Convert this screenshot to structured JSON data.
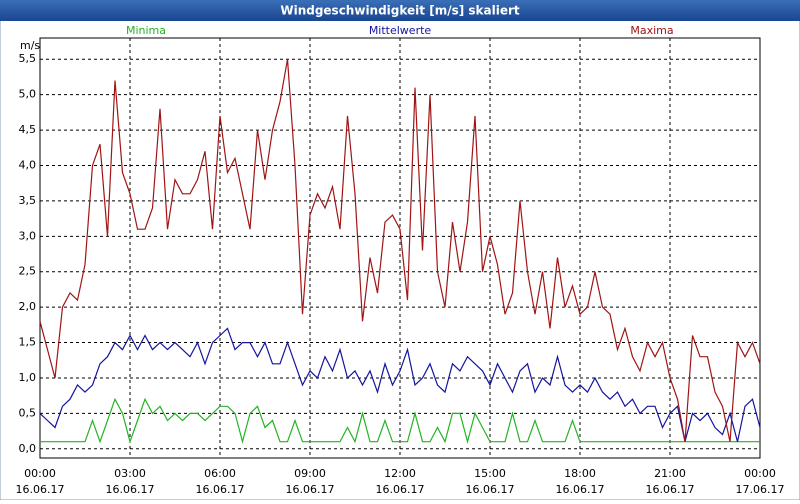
{
  "chart_data": {
    "type": "line",
    "title": "Windgeschwindigkeit [m/s] skaliert",
    "y_unit": "m/s",
    "grid": true,
    "xlim": [
      0,
      24
    ],
    "ylim": [
      -0.13,
      5.8
    ],
    "xticks": [
      {
        "value": 0,
        "label": [
          "00:00",
          "16.06.17"
        ]
      },
      {
        "value": 3,
        "label": [
          "03:00",
          "16.06.17"
        ]
      },
      {
        "value": 6,
        "label": [
          "06:00",
          "16.06.17"
        ]
      },
      {
        "value": 9,
        "label": [
          "09:00",
          "16.06.17"
        ]
      },
      {
        "value": 12,
        "label": [
          "12:00",
          "16.06.17"
        ]
      },
      {
        "value": 15,
        "label": [
          "15:00",
          "16.06.17"
        ]
      },
      {
        "value": 18,
        "label": [
          "18:00",
          "16.06.17"
        ]
      },
      {
        "value": 21,
        "label": [
          "21:00",
          "16.06.17"
        ]
      },
      {
        "value": 24,
        "label": [
          "00:00",
          "17.06.17"
        ]
      }
    ],
    "yticks": [
      {
        "value": 0,
        "label": "0,0"
      },
      {
        "value": 0.5,
        "label": "0,5"
      },
      {
        "value": 1,
        "label": "1,0"
      },
      {
        "value": 1.5,
        "label": "1,5"
      },
      {
        "value": 2,
        "label": "2,0"
      },
      {
        "value": 2.5,
        "label": "2,5"
      },
      {
        "value": 3,
        "label": "3,0"
      },
      {
        "value": 3.5,
        "label": "3,5"
      },
      {
        "value": 4,
        "label": "4,0"
      },
      {
        "value": 4.5,
        "label": "4,5"
      },
      {
        "value": 5,
        "label": "5,0"
      },
      {
        "value": 5.5,
        "label": "5,5"
      }
    ],
    "x": [
      0,
      0.25,
      0.5,
      0.75,
      1,
      1.25,
      1.5,
      1.75,
      2,
      2.25,
      2.5,
      2.75,
      3,
      3.25,
      3.5,
      3.75,
      4,
      4.25,
      4.5,
      4.75,
      5,
      5.25,
      5.5,
      5.75,
      6,
      6.25,
      6.5,
      6.75,
      7,
      7.25,
      7.5,
      7.75,
      8,
      8.25,
      8.5,
      8.75,
      9,
      9.25,
      9.5,
      9.75,
      10,
      10.25,
      10.5,
      10.75,
      11,
      11.25,
      11.5,
      11.75,
      12,
      12.25,
      12.5,
      12.75,
      13,
      13.25,
      13.5,
      13.75,
      14,
      14.25,
      14.5,
      14.75,
      15,
      15.25,
      15.5,
      15.75,
      16,
      16.25,
      16.5,
      16.75,
      17,
      17.25,
      17.5,
      17.75,
      18,
      18.25,
      18.5,
      18.75,
      19,
      19.25,
      19.5,
      19.75,
      20,
      20.25,
      20.5,
      20.75,
      21,
      21.25,
      21.5,
      21.75,
      22,
      22.25,
      22.5,
      22.75,
      23,
      23.25,
      23.5,
      23.75,
      24
    ],
    "series": [
      {
        "name": "Minima",
        "color": "#22b422",
        "values": [
          0.1,
          0.1,
          0.1,
          0.1,
          0.1,
          0.1,
          0.1,
          0.4,
          0.1,
          0.4,
          0.7,
          0.5,
          0.1,
          0.4,
          0.7,
          0.5,
          0.6,
          0.4,
          0.5,
          0.4,
          0.5,
          0.5,
          0.4,
          0.5,
          0.6,
          0.6,
          0.5,
          0.1,
          0.5,
          0.6,
          0.3,
          0.4,
          0.1,
          0.1,
          0.4,
          0.1,
          0.1,
          0.1,
          0.1,
          0.1,
          0.1,
          0.3,
          0.1,
          0.5,
          0.1,
          0.1,
          0.4,
          0.1,
          0.1,
          0.1,
          0.5,
          0.1,
          0.1,
          0.3,
          0.1,
          0.5,
          0.5,
          0.1,
          0.5,
          0.3,
          0.1,
          0.1,
          0.1,
          0.5,
          0.1,
          0.1,
          0.4,
          0.1,
          0.1,
          0.1,
          0.1,
          0.4,
          0.1,
          0.1,
          0.1,
          0.1,
          0.1,
          0.1,
          0.1,
          0.1,
          0.1,
          0.1,
          0.1,
          0.1,
          0.1,
          0.1,
          0.1,
          0.1,
          0.1,
          0.1,
          0.1,
          0.1,
          0.1,
          0.1,
          0.1,
          0.1,
          0.1
        ]
      },
      {
        "name": "Mittelwerte",
        "color": "#1414a0",
        "values": [
          0.5,
          0.4,
          0.3,
          0.6,
          0.7,
          0.9,
          0.8,
          0.9,
          1.2,
          1.3,
          1.5,
          1.4,
          1.6,
          1.4,
          1.6,
          1.4,
          1.5,
          1.4,
          1.5,
          1.4,
          1.3,
          1.5,
          1.2,
          1.5,
          1.6,
          1.7,
          1.4,
          1.5,
          1.5,
          1.3,
          1.5,
          1.2,
          1.2,
          1.5,
          1.2,
          0.9,
          1.1,
          1.0,
          1.3,
          1.1,
          1.4,
          1.0,
          1.1,
          0.9,
          1.1,
          0.8,
          1.2,
          0.9,
          1.1,
          1.4,
          0.9,
          1.0,
          1.2,
          0.9,
          0.8,
          1.2,
          1.1,
          1.3,
          1.2,
          1.1,
          0.9,
          1.2,
          1.0,
          0.8,
          1.1,
          1.2,
          0.8,
          1.0,
          0.9,
          1.3,
          0.9,
          0.8,
          0.9,
          0.8,
          1.0,
          0.8,
          0.7,
          0.8,
          0.6,
          0.7,
          0.5,
          0.6,
          0.6,
          0.3,
          0.5,
          0.6,
          0.1,
          0.5,
          0.4,
          0.5,
          0.3,
          0.2,
          0.5,
          0.1,
          0.6,
          0.7,
          0.3
        ]
      },
      {
        "name": "Maxima",
        "color": "#a01414",
        "values": [
          1.8,
          1.4,
          1.0,
          2.0,
          2.2,
          2.1,
          2.6,
          4.0,
          4.3,
          3.0,
          5.2,
          3.9,
          3.6,
          3.1,
          3.1,
          3.4,
          4.8,
          3.1,
          3.8,
          3.6,
          3.6,
          3.8,
          4.2,
          3.1,
          4.7,
          3.9,
          4.1,
          3.6,
          3.1,
          4.5,
          3.8,
          4.5,
          4.9,
          5.5,
          4.0,
          1.9,
          3.3,
          3.6,
          3.4,
          3.7,
          3.1,
          4.7,
          3.6,
          1.8,
          2.7,
          2.2,
          3.2,
          3.3,
          3.1,
          2.1,
          5.1,
          2.8,
          5.0,
          2.5,
          2.0,
          3.2,
          2.5,
          3.2,
          4.7,
          2.5,
          3.0,
          2.6,
          1.9,
          2.2,
          3.5,
          2.5,
          1.9,
          2.5,
          1.7,
          2.7,
          2.0,
          2.3,
          1.9,
          2.0,
          2.5,
          2.0,
          1.9,
          1.4,
          1.7,
          1.3,
          1.1,
          1.5,
          1.3,
          1.5,
          1.0,
          0.7,
          0.1,
          1.6,
          1.3,
          1.3,
          0.8,
          0.6,
          0.1,
          1.5,
          1.3,
          1.5,
          1.2
        ]
      }
    ]
  }
}
